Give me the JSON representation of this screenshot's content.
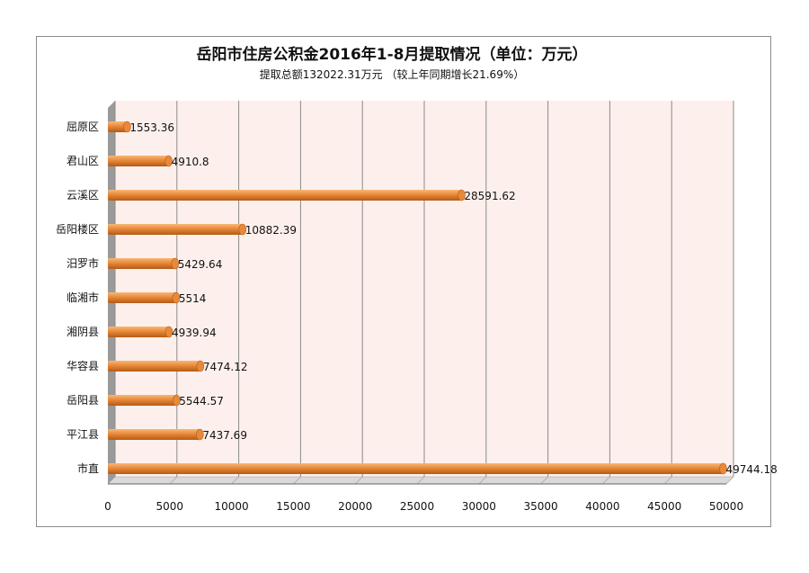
{
  "chart_data": {
    "type": "bar",
    "orientation": "horizontal",
    "title": "岳阳市住房公积金2016年1-8月提取情况（单位：万元）",
    "subtitle": "提取总额132022.31万元 （较上年同期增长21.69%）",
    "categories": [
      "屈原区",
      "君山区",
      "云溪区",
      "岳阳楼区",
      "汨罗市",
      "临湘市",
      "湘阴县",
      "华容县",
      "岳阳县",
      "平江县",
      "市直"
    ],
    "values": [
      1553.36,
      4910.8,
      28591.62,
      10882.39,
      5429.64,
      5514,
      4939.94,
      7474.12,
      5544.57,
      7437.69,
      49744.18
    ],
    "value_labels": [
      "1553.36",
      "4910.8",
      "28591.62",
      "10882.39",
      "5429.64",
      "5514",
      "4939.94",
      "7474.12",
      "5544.57",
      "7437.69",
      "49744.18"
    ],
    "xlim": [
      0,
      50000
    ],
    "x_ticks": [
      "0",
      "5000",
      "10000",
      "15000",
      "20000",
      "25000",
      "30000",
      "35000",
      "40000",
      "45000",
      "50000"
    ],
    "x_tick_values": [
      0,
      5000,
      10000,
      15000,
      20000,
      25000,
      30000,
      35000,
      40000,
      45000,
      50000
    ],
    "grid": true,
    "legend": "none",
    "colors": {
      "bar_light": "#f7b877",
      "bar_mid": "#e8893a",
      "bar_dark": "#b45a16",
      "plot_bg": "#fdf0ec",
      "grid": "#8a8a8a",
      "wall": "#9a9a9a"
    }
  }
}
